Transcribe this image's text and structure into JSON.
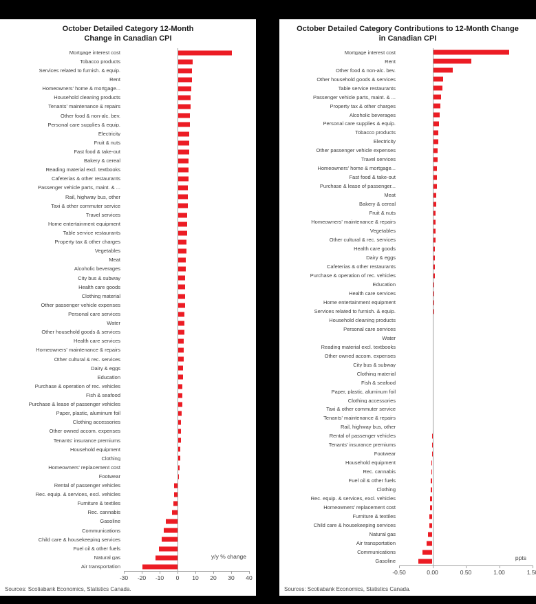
{
  "page": {
    "background_color": "#000000",
    "panel_color": "#ffffff"
  },
  "chart_data": [
    {
      "type": "bar",
      "orientation": "horizontal",
      "title": "October Detailed Category 12-Month Change in Canadian CPI",
      "unit_label": "y/y % change",
      "source": "Sources: Scotiabank Economics, Statistics Canada.",
      "bar_color": "#EC1C24",
      "axis_color": "#a0a0a0",
      "grid": false,
      "xlim": [
        -30,
        40
      ],
      "xticks": [
        -30,
        -20,
        -10,
        0,
        10,
        20,
        30,
        40
      ],
      "xtick_labels": [
        "-30",
        "-20",
        "-10",
        "0",
        "10",
        "20",
        "30",
        "40"
      ],
      "categories": [
        "Mortgage interest cost",
        "Tobacco products",
        "Services related to furnish. & equip.",
        "Rent",
        "Homeowners' home & mortgage...",
        "Household cleaning products",
        "Tenants' maintenance & repairs",
        "Other food & non-alc. bev.",
        "Personal care supplies & equip.",
        "Electricity",
        "Fruit & nuts",
        "Fast food & take-out",
        "Bakery & cereal",
        "Reading material excl. textbooks",
        "Cafeterias & other restaurants",
        "Passenger vehicle parts, maint. & ...",
        "Rail, highway bus, other",
        "Taxi & other commuter service",
        "Travel services",
        "Home entertainment equipment",
        "Table service restaurants",
        "Property tax & other charges",
        "Vegetables",
        "Meat",
        "Alcoholic beverages",
        "City bus & subway",
        "Health care goods",
        "Clothing material",
        "Other passenger vehicle expenses",
        "Personal care services",
        "Water",
        "Other household goods & services",
        "Health care services",
        "Homeowners' maintenance & repairs",
        "Other cultural & rec. services",
        "Dairy & eggs",
        "Education",
        "Purchase & operation of rec. vehicles",
        "Fish & seafood",
        "Purchase & lease of passenger vehicles",
        "Paper, plastic, aluminum foil",
        "Clothing accessories",
        "Other owned accom. expenses",
        "Tenants' insurance premiums",
        "Household equipment",
        "Clothing",
        "Homeowners' replacement cost",
        "Footwear",
        "Rental of passenger vehicles",
        "Rec. equip. & services, excl. vehicles",
        "Furniture & textiles",
        "Rec. cannabis",
        "Gasoline",
        "Communications",
        "Child care & housekeeping services",
        "Fuel oil & other fuels",
        "Natural gas",
        "Air transportation"
      ],
      "values": [
        30.5,
        8.3,
        8.0,
        7.9,
        7.6,
        7.4,
        7.2,
        7.1,
        6.9,
        6.7,
        6.6,
        6.4,
        6.3,
        6.1,
        6.0,
        5.9,
        5.7,
        5.6,
        5.5,
        5.4,
        5.2,
        5.1,
        5.0,
        4.8,
        4.6,
        4.4,
        4.3,
        4.2,
        4.1,
        3.9,
        3.8,
        3.7,
        3.5,
        3.4,
        3.3,
        3.1,
        2.9,
        2.8,
        2.6,
        2.5,
        2.3,
        2.1,
        2.0,
        1.8,
        1.6,
        1.4,
        1.2,
        0.9,
        -1.8,
        -2.1,
        -2.4,
        -3.0,
        -6.4,
        -7.8,
        -9.0,
        -10.4,
        -12.2,
        -19.8
      ]
    },
    {
      "type": "bar",
      "orientation": "horizontal",
      "title": "October Detailed Category Contributions to 12-Month Change in Canadian CPI",
      "unit_label": "ppts",
      "source": "Sources: Scotiabank Economics, Statistics Canada.",
      "bar_color": "#EC1C24",
      "axis_color": "#a0a0a0",
      "grid": false,
      "xlim": [
        -0.5,
        1.5
      ],
      "xticks": [
        -0.5,
        0,
        0.5,
        1,
        1.5
      ],
      "xtick_labels": [
        "-0.50",
        "0.00",
        "0.50",
        "1.00",
        "1.50"
      ],
      "categories": [
        "Mortgage interest cost",
        "Rent",
        "Other food & non-alc. bev.",
        "Other household goods & services",
        "Table service restaurants",
        "Passenger vehicle parts, maint. & ...",
        "Property tax & other charges",
        "Alcoholic beverages",
        "Personal care supplies & equip.",
        "Tobacco products",
        "Electricity",
        "Other passenger vehicle expenses",
        "Travel services",
        "Homeowners' home & mortgage...",
        "Fast food & take-out",
        "Purchase & lease of passenger...",
        "Meat",
        "Bakery & cereal",
        "Fruit & nuts",
        "Homeowners' maintenance & repairs",
        "Vegetables",
        "Other cultural & rec. services",
        "Health care goods",
        "Dairy & eggs",
        "Cafeterias & other restaurants",
        "Purchase & operation of rec. vehicles",
        "Education",
        "Health care services",
        "Home entertainment equipment",
        "Services related to furnish. & equip.",
        "Household cleaning products",
        "Personal care services",
        "Water",
        "Reading material excl. textbooks",
        "Other owned accom. expenses",
        "City bus & subway",
        "Clothing material",
        "Fish & seafood",
        "Paper, plastic, aluminum foil",
        "Clothing accessories",
        "Taxi & other commuter service",
        "Tenants' maintenance & repairs",
        "Rail, highway bus, other",
        "Rental of passenger vehicles",
        "Tenants' insurance premiums",
        "Footwear",
        "Household equipment",
        "Rec. cannabis",
        "Fuel oil & other fuels",
        "Clothing",
        "Rec. equip. & services, excl. vehicles",
        "Homeowners' replacement cost",
        "Furniture & textiles",
        "Child care & housekeeping services",
        "Natural gas",
        "Air transportation",
        "Communications",
        "Gasoline"
      ],
      "values": [
        1.15,
        0.58,
        0.3,
        0.16,
        0.15,
        0.13,
        0.12,
        0.11,
        0.1,
        0.09,
        0.09,
        0.08,
        0.08,
        0.07,
        0.07,
        0.07,
        0.06,
        0.06,
        0.05,
        0.05,
        0.05,
        0.05,
        0.04,
        0.04,
        0.04,
        0.04,
        0.03,
        0.03,
        0.03,
        0.03,
        0.02,
        0.02,
        0.02,
        0.02,
        0.02,
        0.01,
        0.01,
        0.01,
        0.01,
        0.01,
        0.01,
        0.01,
        0.01,
        -0.01,
        -0.01,
        -0.01,
        -0.02,
        -0.02,
        -0.03,
        -0.03,
        -0.04,
        -0.04,
        -0.05,
        -0.05,
        -0.07,
        -0.09,
        -0.15,
        -0.21
      ]
    }
  ]
}
